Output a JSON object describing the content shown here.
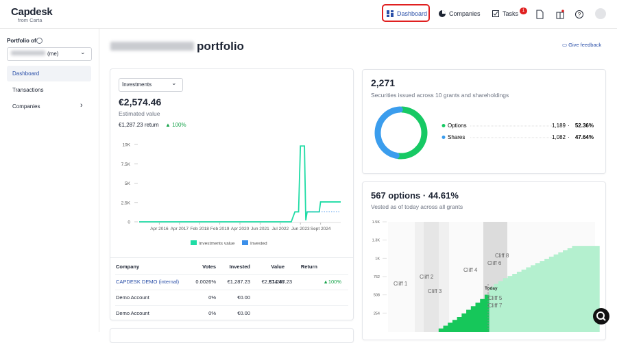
{
  "header": {
    "logo": "Capdesk",
    "logo_sub": "from Carta",
    "nav": [
      "Dashboard",
      "Companies",
      "Tasks"
    ],
    "tasks_badge": "1"
  },
  "sidebar": {
    "portfolio_label": "Portfolio of",
    "owner_suffix": "(me)",
    "nav": [
      "Dashboard",
      "Transactions",
      "Companies"
    ]
  },
  "page": {
    "title": "portfolio",
    "feedback": "Give feedback"
  },
  "investments": {
    "dropdown": "Investments",
    "value": "€2,574.46",
    "value_label": "Estimated value",
    "return": "€1,287.23 return",
    "return_pct": "▲ 100%",
    "chart_data": {
      "type": "line",
      "xlim": [
        "2015-11",
        "2024-12"
      ],
      "ylim": [
        0,
        10000
      ],
      "yticks": [
        0,
        {
          "value": 2500,
          "label": "2.5K"
        },
        {
          "value": 5000,
          "label": "5K"
        },
        {
          "value": 7500,
          "label": "7.5K"
        },
        {
          "value": 10000,
          "label": "10K"
        }
      ],
      "xticks": [
        {
          "value": "2016-04",
          "label": "Apr 2016"
        },
        {
          "value": "2017-04",
          "label": "Apr 2017"
        },
        {
          "value": "2018-02",
          "label": "Feb 2018"
        },
        {
          "value": "2019-02",
          "label": "Feb 2019"
        },
        {
          "value": "2020-04",
          "label": "Apr 2020"
        },
        {
          "value": "2021-06",
          "label": "Jun 2021"
        },
        {
          "value": "2022-07",
          "label": "Jul 2022"
        },
        {
          "value": "2023-06",
          "label": "Jun 2023"
        },
        {
          "value": "2024-09",
          "label": "Sept 2024"
        }
      ],
      "series": [
        {
          "name": "Investments value",
          "color": "#1fdca5",
          "dash": false,
          "x": [
            "2015-11",
            "2023-01",
            "2023-03",
            "2023-05",
            "2023-06",
            "2023-09",
            "2023-10",
            "2023-11",
            "2024-08",
            "2024-09",
            "2024-12"
          ],
          "values": [
            0,
            0,
            1287,
            1287,
            9800,
            9800,
            200,
            1287,
            1287,
            2574,
            2574
          ]
        },
        {
          "name": "Invested",
          "color": "#3b8fea",
          "dash": true,
          "x": [
            "2023-11",
            "2024-12"
          ],
          "values": [
            1287,
            1287
          ]
        }
      ]
    },
    "table": {
      "header": [
        "Company",
        "Votes",
        "Invested",
        "Value",
        "Return"
      ],
      "rows": [
        [
          "CAPDESK DEMO (internal)",
          "0.0026%",
          "€1,287.23",
          "€2,574.46",
          "€1,287.23",
          "▲100%"
        ],
        [
          "Demo Account",
          "0%",
          "€0.00",
          null,
          null,
          null
        ],
        [
          "Demo Account",
          "0%",
          "€0.00",
          null,
          null,
          null
        ]
      ]
    }
  },
  "securities": {
    "title": "2,271",
    "subtitle": "Securities issued across 10 grants and shareholdings",
    "chart_data": {
      "type": "donut",
      "categories": [
        "Options",
        "Shares"
      ],
      "values": [
        1189,
        1082
      ],
      "value_labels": [
        "1,189",
        "1,082"
      ],
      "percents": [
        52.36,
        47.64
      ],
      "percent_labels": [
        "52.36%",
        "47.64%"
      ],
      "colors": [
        "#17c964",
        "#3b9ded"
      ]
    }
  },
  "vesting": {
    "title": "567 options · 44.61%",
    "subtitle": "Vested as of today across all grants",
    "today": "Today",
    "cliffs": [
      "Cliff 1",
      "Cliff 2",
      "Cliff 3",
      "Cliff 4",
      "Cliff 5",
      "Cliff 6",
      "Cliff 7",
      "Cliff 8"
    ],
    "chart_data": {
      "type": "area",
      "ylim": [
        0,
        1524
      ],
      "yticks": [
        254,
        508,
        762,
        {
          "value": 1016,
          "label": "1K"
        },
        {
          "value": 1270,
          "label": "1.3K"
        },
        {
          "value": 1524,
          "label": "1.5K"
        }
      ],
      "series": [
        {
          "color": "#16c75a",
          "values": [
            null,
            null,
            null,
            null,
            null,
            null,
            null,
            null,
            null,
            null,
            null,
            40,
            80,
            120,
            160,
            200,
            250,
            300,
            350,
            400,
            450,
            510,
            567,
            null,
            null,
            null,
            null,
            null,
            null,
            null,
            null,
            null,
            null,
            null,
            null,
            null,
            null,
            null,
            null,
            null,
            null,
            null,
            null,
            null,
            null,
            null
          ]
        },
        {
          "color": "#b4f0cf",
          "values": [
            null,
            null,
            null,
            null,
            null,
            null,
            null,
            null,
            null,
            null,
            null,
            null,
            null,
            null,
            null,
            null,
            null,
            null,
            null,
            null,
            null,
            null,
            620,
            660,
            700,
            740,
            770,
            800,
            830,
            860,
            890,
            920,
            950,
            980,
            1010,
            1040,
            1070,
            1100,
            1130,
            1160,
            1189,
            1189,
            1189,
            1189,
            1189,
            1189
          ]
        }
      ]
    }
  }
}
